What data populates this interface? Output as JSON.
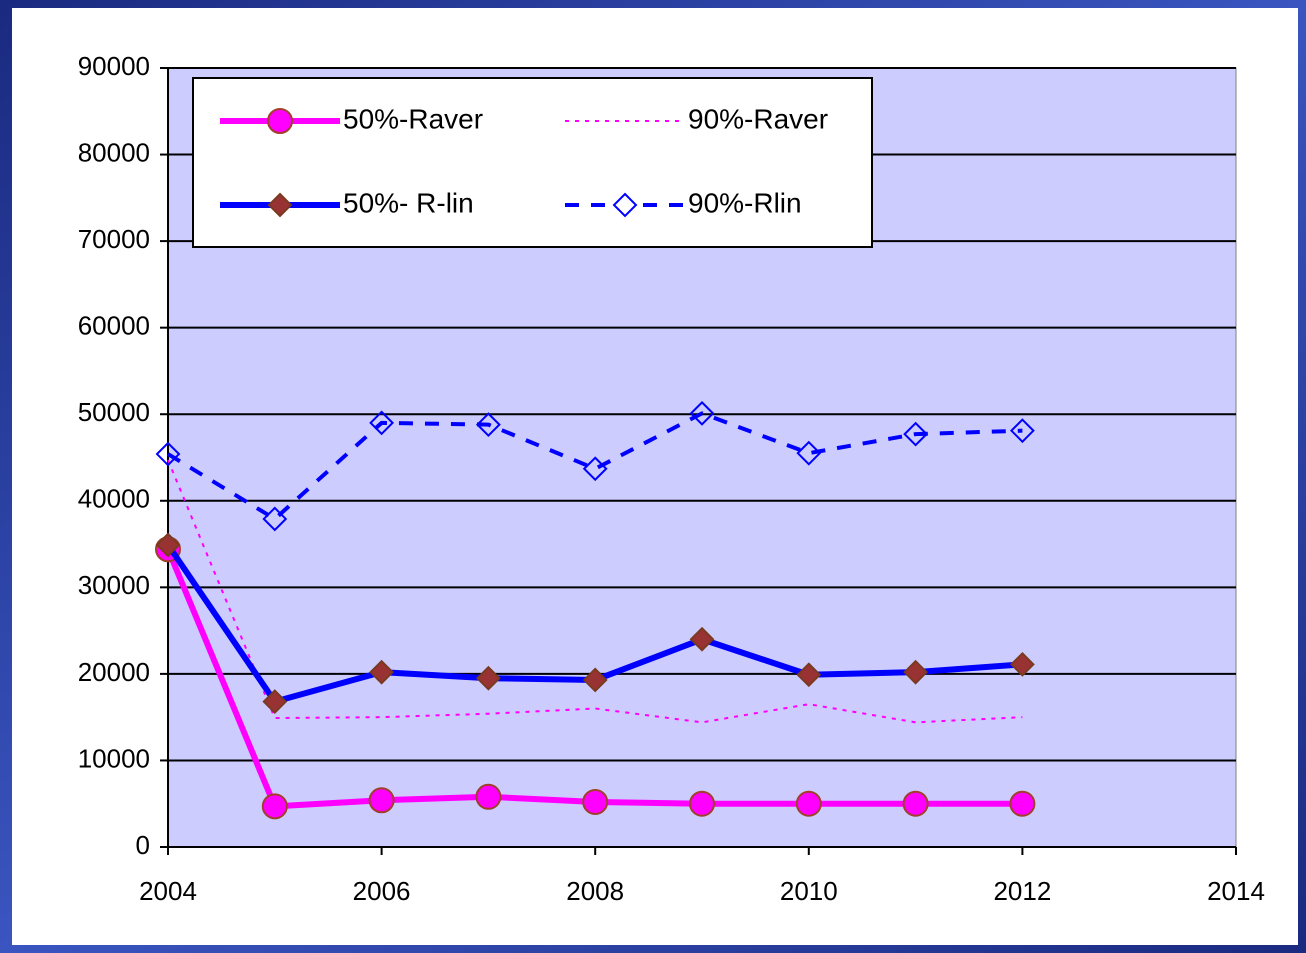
{
  "chart_data": {
    "type": "line",
    "x": [
      2004,
      2005,
      2006,
      2007,
      2008,
      2009,
      2010,
      2011,
      2012
    ],
    "series": [
      {
        "name": "50%-Raver",
        "color": "#ff00ff",
        "width": 6,
        "dash": "solid",
        "marker": "circle",
        "marker_fill": "#ff00ff",
        "marker_stroke": "#a0402a",
        "values": [
          34400,
          4700,
          5400,
          5800,
          5200,
          5000,
          5000,
          5000,
          5000
        ]
      },
      {
        "name": "90%-Raver",
        "color": "#ff00ff",
        "width": 2,
        "dash": "dotted",
        "marker": "none",
        "marker_fill": "none",
        "marker_stroke": "none",
        "values": [
          44700,
          14900,
          15000,
          15400,
          16000,
          14400,
          16500,
          14400,
          15000
        ]
      },
      {
        "name": "50%- R-lin",
        "color": "#0000ff",
        "width": 6,
        "dash": "solid",
        "marker": "diamond",
        "marker_fill": "#993333",
        "marker_stroke": "#7a3a20",
        "values": [
          34900,
          16800,
          20200,
          19500,
          19300,
          24000,
          19900,
          20200,
          21100
        ]
      },
      {
        "name": "90%-Rlin",
        "color": "#0000ff",
        "width": 4,
        "dash": "dashed",
        "marker": "diamond",
        "marker_fill": "none",
        "marker_stroke": "#0000ff",
        "values": [
          45400,
          37900,
          49000,
          48800,
          43700,
          50100,
          45500,
          47700,
          48100
        ]
      }
    ],
    "xlim": [
      2004,
      2014
    ],
    "xticks": [
      2004,
      2006,
      2008,
      2010,
      2012,
      2014
    ],
    "ylim": [
      0,
      90000
    ],
    "yticks": [
      0,
      10000,
      20000,
      30000,
      40000,
      50000,
      60000,
      70000,
      80000,
      90000
    ],
    "grid": true,
    "legend": "top-left",
    "plot_background": "#ccccff"
  }
}
